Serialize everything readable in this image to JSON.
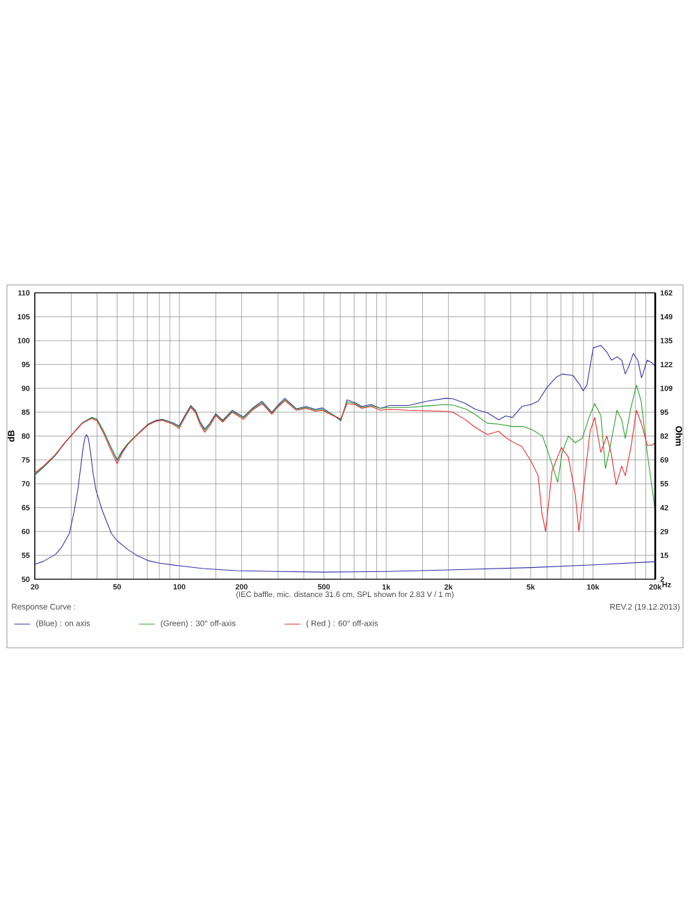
{
  "chart_data": {
    "type": "line",
    "xlabel": "Hz",
    "ylabel": "dB",
    "y2label": "Ohm",
    "legend_title": "Response Curve :",
    "annotations": [
      "(IEC baffle, mic. distance 31.6 cm, SPL shown for 2.83 V / 1 m)",
      "REV.2 (19.12.2013)"
    ],
    "log": "x",
    "grid": true,
    "legend": "bottom",
    "marker": "none",
    "line_style": "solid",
    "xlim": [
      20,
      20000
    ],
    "xticks": [
      20,
      {
        "value": 30,
        "label": null
      },
      {
        "value": 40,
        "label": null
      },
      50,
      {
        "value": 60,
        "label": null
      },
      {
        "value": 70,
        "label": null
      },
      {
        "value": 80,
        "label": null
      },
      {
        "value": 90,
        "label": null
      },
      100,
      {
        "value": 150,
        "label": null
      },
      200,
      {
        "value": 300,
        "label": null
      },
      {
        "value": 400,
        "label": null
      },
      500,
      {
        "value": 600,
        "label": null
      },
      {
        "value": 700,
        "label": null
      },
      {
        "value": 800,
        "label": null
      },
      {
        "value": 900,
        "label": null
      },
      {
        "value": 1000,
        "label": "1k"
      },
      {
        "value": 1500,
        "label": null
      },
      {
        "value": 2000,
        "label": "2k"
      },
      {
        "value": 3000,
        "label": null
      },
      {
        "value": 4000,
        "label": null
      },
      {
        "value": 5000,
        "label": "5k"
      },
      {
        "value": 6000,
        "label": null
      },
      {
        "value": 7000,
        "label": null
      },
      {
        "value": 8000,
        "label": null
      },
      {
        "value": 9000,
        "label": null
      },
      {
        "value": 10000,
        "label": "10k"
      },
      {
        "value": 16000,
        "label": null
      },
      {
        "value": 18000,
        "label": null
      },
      {
        "value": 20000,
        "label": "20k"
      }
    ],
    "ylim": [
      50,
      110
    ],
    "yticks": [
      50,
      55,
      60,
      65,
      70,
      75,
      80,
      85,
      90,
      95,
      100,
      105,
      110
    ],
    "y2lim": [
      2,
      162
    ],
    "y2ticks": [
      2,
      {
        "value": 15.33,
        "label": "15"
      },
      {
        "value": 28.67,
        "label": "29"
      },
      42,
      {
        "value": 55.33,
        "label": "55"
      },
      {
        "value": 68.67,
        "label": "69"
      },
      82,
      {
        "value": 95.33,
        "label": "95"
      },
      {
        "value": 108.67,
        "label": "109"
      },
      122,
      {
        "value": 135.33,
        "label": "135"
      },
      {
        "value": 148.67,
        "label": "149"
      },
      162
    ],
    "series": [
      {
        "name": "(Blue) : on axis",
        "color": "#3333aa",
        "x": [
          20,
          22,
          25,
          28,
          31,
          34,
          37.7,
          40,
          43.3,
          46.9,
          50,
          53,
          56.5,
          62.3,
          70.6,
          77,
          82.9,
          92.9,
          99.7,
          106,
          113.5,
          120,
          126,
          132.6,
          140,
          150,
          162,
          180,
          204,
          225,
          251,
          280,
          300,
          324,
          368,
          410,
          455,
          492,
          546,
          604,
          647,
          706,
          762,
          846,
          938,
          1040,
          1279,
          1573,
          1933,
          2100,
          2400,
          2700,
          3080,
          3500,
          3780,
          4080,
          4530,
          5020,
          5430,
          6020,
          6680,
          7100,
          8000,
          8650,
          8960,
          9350,
          10030,
          10910,
          11670,
          12280,
          13060,
          13770,
          14330,
          14860,
          15660,
          16480,
          17180,
          18280,
          19240,
          20000
        ],
        "values": [
          71.8,
          73.4,
          75.8,
          78.6,
          80.8,
          82.8,
          83.9,
          83.5,
          80.8,
          77.4,
          74.9,
          76.8,
          78.4,
          80.3,
          82.5,
          83.3,
          83.5,
          82.8,
          82.1,
          84.2,
          86.4,
          85.3,
          83.0,
          81.5,
          82.6,
          84.7,
          83.3,
          85.4,
          84.0,
          85.8,
          87.3,
          85.0,
          86.5,
          87.9,
          85.7,
          86.2,
          85.6,
          85.9,
          84.6,
          83.2,
          87.6,
          87.0,
          86.2,
          86.6,
          85.8,
          86.4,
          86.4,
          87.3,
          87.9,
          87.8,
          86.9,
          85.6,
          84.9,
          83.4,
          84.2,
          83.9,
          86.2,
          86.6,
          87.3,
          90.3,
          92.4,
          93.0,
          92.7,
          90.7,
          89.5,
          90.7,
          98.5,
          99.0,
          97.6,
          95.9,
          96.6,
          95.9,
          93.0,
          94.5,
          97.3,
          95.9,
          92.2,
          95.9,
          95.4,
          94.6
        ]
      },
      {
        "name": "(Green) : 30° off-axis",
        "color": "#2ca02c",
        "x": [
          20,
          22,
          25,
          28,
          31,
          34,
          37.7,
          40,
          43.3,
          46.9,
          50,
          53,
          56.5,
          62.3,
          70.6,
          77,
          82.9,
          92.9,
          99.7,
          106,
          113.5,
          120,
          126,
          132.6,
          140,
          150,
          162,
          180,
          204,
          225,
          251,
          280,
          300,
          324,
          368,
          410,
          455,
          492,
          546,
          604,
          647,
          706,
          762,
          846,
          938,
          1040,
          1279,
          1573,
          1933,
          2100,
          2450,
          2700,
          3080,
          3500,
          4080,
          4600,
          5100,
          5700,
          6180,
          6750,
          7100,
          7600,
          8210,
          8870,
          9570,
          10190,
          10910,
          11490,
          12090,
          13060,
          13770,
          14330,
          15250,
          16230,
          17100,
          18280,
          20000
        ],
        "values": [
          72.0,
          73.5,
          75.9,
          78.6,
          80.8,
          82.8,
          83.9,
          83.5,
          80.8,
          77.5,
          75.1,
          77.0,
          78.5,
          80.3,
          82.4,
          83.2,
          83.4,
          82.7,
          81.9,
          84.0,
          86.2,
          85.1,
          82.8,
          81.2,
          82.4,
          84.5,
          83.1,
          85.2,
          83.8,
          85.6,
          87.0,
          84.8,
          86.3,
          87.6,
          85.6,
          86.0,
          85.4,
          85.6,
          84.6,
          83.4,
          87.2,
          86.8,
          86.0,
          86.4,
          85.8,
          86.0,
          86.0,
          86.3,
          86.6,
          86.5,
          85.6,
          84.5,
          82.7,
          82.5,
          82.0,
          82.0,
          81.3,
          80.0,
          75.6,
          70.3,
          76.6,
          80.0,
          78.6,
          79.5,
          83.9,
          86.8,
          84.4,
          73.2,
          77.6,
          85.4,
          83.4,
          79.5,
          85.9,
          90.7,
          87.3,
          76.6,
          64.3
        ]
      },
      {
        "name": "( Red ) : 60° off-axis",
        "color": "#e8282a",
        "x": [
          20,
          22,
          25,
          28,
          31,
          34,
          37.7,
          40,
          43.3,
          46.9,
          50,
          53,
          56.5,
          62.3,
          70.6,
          77,
          82.9,
          92.9,
          99.7,
          106,
          113.5,
          120,
          126,
          132.6,
          140,
          150,
          162,
          180,
          204,
          225,
          251,
          280,
          300,
          324,
          368,
          410,
          455,
          492,
          546,
          604,
          647,
          706,
          762,
          846,
          938,
          1040,
          1279,
          1573,
          1933,
          2100,
          2400,
          2700,
          3080,
          3500,
          3780,
          4080,
          4530,
          5020,
          5430,
          5660,
          5900,
          6340,
          7030,
          7600,
          8210,
          8550,
          9100,
          9680,
          10190,
          10910,
          11670,
          12280,
          12940,
          13770,
          14330,
          15250,
          16230,
          17180,
          18280,
          19240,
          20000
        ],
        "values": [
          72.3,
          73.7,
          76.0,
          78.7,
          80.8,
          82.7,
          83.7,
          83.2,
          80.3,
          76.8,
          74.2,
          76.5,
          78.3,
          80.2,
          82.3,
          83.1,
          83.3,
          82.5,
          81.6,
          83.8,
          86.0,
          84.8,
          82.4,
          80.8,
          82.1,
          84.3,
          82.9,
          85.0,
          83.5,
          85.4,
          86.8,
          84.6,
          86.1,
          87.4,
          85.4,
          85.8,
          85.2,
          85.4,
          84.4,
          83.6,
          86.8,
          86.6,
          85.8,
          86.2,
          85.4,
          85.6,
          85.4,
          85.3,
          85.2,
          85.0,
          83.5,
          81.8,
          80.3,
          81.0,
          79.7,
          78.8,
          77.8,
          74.7,
          71.7,
          63.9,
          60.0,
          72.7,
          77.6,
          75.6,
          67.8,
          60.0,
          70.8,
          81.0,
          83.9,
          76.6,
          80.0,
          76.1,
          69.8,
          73.7,
          71.7,
          77.6,
          85.4,
          82.5,
          78.1,
          78.1,
          78.6
        ]
      },
      {
        "color": "#3333aa",
        "axis": "y2",
        "x": [
          20,
          22,
          25.2,
          27,
          29.4,
          31.1,
          32.3,
          33.3,
          34.2,
          35,
          35.6,
          36.3,
          37.2,
          38.3,
          39.5,
          42.3,
          46.9,
          50,
          56.5,
          62,
          70.6,
          80,
          100,
          130,
          188,
          300,
          500,
          1000,
          2000,
          5000,
          10000,
          20000
        ],
        "values": [
          10.3,
          12.0,
          15.9,
          20.0,
          27.6,
          40.7,
          52.0,
          64.0,
          75.0,
          81.2,
          82.8,
          80.8,
          73.0,
          61.0,
          52.0,
          40.7,
          27.6,
          23.5,
          18.5,
          15.5,
          12.4,
          11.0,
          9.5,
          8.0,
          6.8,
          6.3,
          6.0,
          6.3,
          7.2,
          8.5,
          10.0,
          11.8
        ]
      }
    ]
  }
}
